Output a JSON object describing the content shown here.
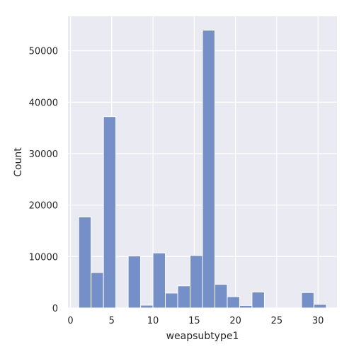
{
  "chart_data": {
    "type": "bar",
    "style": "histogram",
    "title": "",
    "xlabel": "weapsubtype1",
    "ylabel": "Count",
    "xlim": [
      -0.3,
      32.3
    ],
    "ylim": [
      0,
      56700
    ],
    "x_ticks": [
      0,
      5,
      10,
      15,
      20,
      25,
      30
    ],
    "y_ticks": [
      0,
      10000,
      20000,
      30000,
      40000,
      50000
    ],
    "x_tick_labels": [
      "0",
      "5",
      "10",
      "15",
      "20",
      "25",
      "30"
    ],
    "y_tick_labels": [
      "0",
      "10000",
      "20000",
      "30000",
      "40000",
      "50000"
    ],
    "grid": true,
    "bar_color": "#7590c8",
    "background_color": "#eaeaf2",
    "bins": [
      {
        "x0": 1.0,
        "x1": 2.5,
        "count": 17700
      },
      {
        "x0": 2.5,
        "x1": 4.0,
        "count": 6900
      },
      {
        "x0": 4.0,
        "x1": 5.5,
        "count": 37200
      },
      {
        "x0": 5.5,
        "x1": 7.0,
        "count": 0
      },
      {
        "x0": 7.0,
        "x1": 8.5,
        "count": 10100
      },
      {
        "x0": 8.5,
        "x1": 10.0,
        "count": 550
      },
      {
        "x0": 10.0,
        "x1": 11.5,
        "count": 10700
      },
      {
        "x0": 11.5,
        "x1": 13.0,
        "count": 2900
      },
      {
        "x0": 13.0,
        "x1": 14.5,
        "count": 4300
      },
      {
        "x0": 14.5,
        "x1": 16.0,
        "count": 10200
      },
      {
        "x0": 16.0,
        "x1": 17.5,
        "count": 54000
      },
      {
        "x0": 17.5,
        "x1": 19.0,
        "count": 4600
      },
      {
        "x0": 19.0,
        "x1": 20.5,
        "count": 2200
      },
      {
        "x0": 20.5,
        "x1": 22.0,
        "count": 500
      },
      {
        "x0": 22.0,
        "x1": 23.5,
        "count": 3100
      },
      {
        "x0": 23.5,
        "x1": 25.0,
        "count": 0
      },
      {
        "x0": 25.0,
        "x1": 26.5,
        "count": 0
      },
      {
        "x0": 26.5,
        "x1": 28.0,
        "count": 0
      },
      {
        "x0": 28.0,
        "x1": 29.5,
        "count": 3000
      },
      {
        "x0": 29.5,
        "x1": 31.0,
        "count": 700
      }
    ]
  }
}
